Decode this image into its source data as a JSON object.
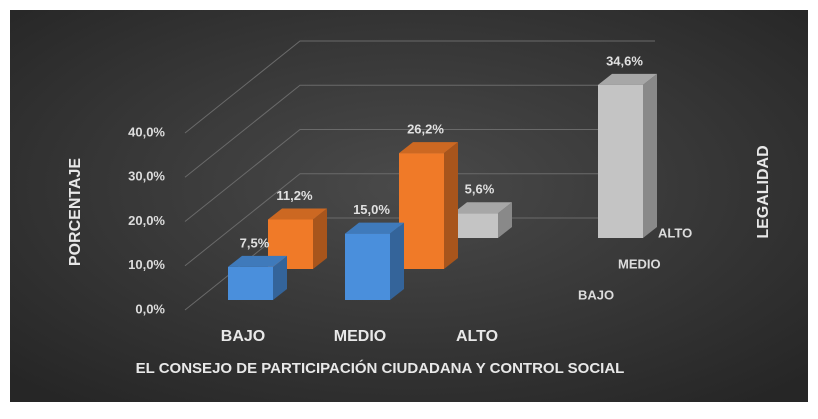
{
  "chart_data": {
    "type": "bar3d",
    "x_label": "EL CONSEJO DE PARTICIPACIÓN CIUDADANA Y CONTROL SOCIAL",
    "y_label": "PORCENTAJE",
    "z_label": "LEGALIDAD",
    "categories": [
      "BAJO",
      "MEDIO",
      "ALTO"
    ],
    "series": [
      {
        "name": "BAJO",
        "color": "#4a8fdc",
        "values": [
          7.5,
          15.0,
          null
        ],
        "value_labels": [
          "7,5%",
          "15,0%",
          null
        ]
      },
      {
        "name": "MEDIO",
        "color": "#f07a28",
        "values": [
          11.2,
          26.2,
          null
        ],
        "value_labels": [
          "11,2%",
          "26,2%",
          null
        ]
      },
      {
        "name": "ALTO",
        "color": "#c4c4c4",
        "values": [
          null,
          5.6,
          34.6
        ],
        "value_labels": [
          null,
          "5,6%",
          "34,6%"
        ]
      }
    ],
    "ylim": [
      0,
      40
    ],
    "yticks": [
      {
        "value": 0,
        "label": "0,0%"
      },
      {
        "value": 10,
        "label": "10,0%"
      },
      {
        "value": 20,
        "label": "20,0%"
      },
      {
        "value": 30,
        "label": "30,0%"
      },
      {
        "value": 40,
        "label": "40,0%"
      }
    ],
    "grid": true
  }
}
